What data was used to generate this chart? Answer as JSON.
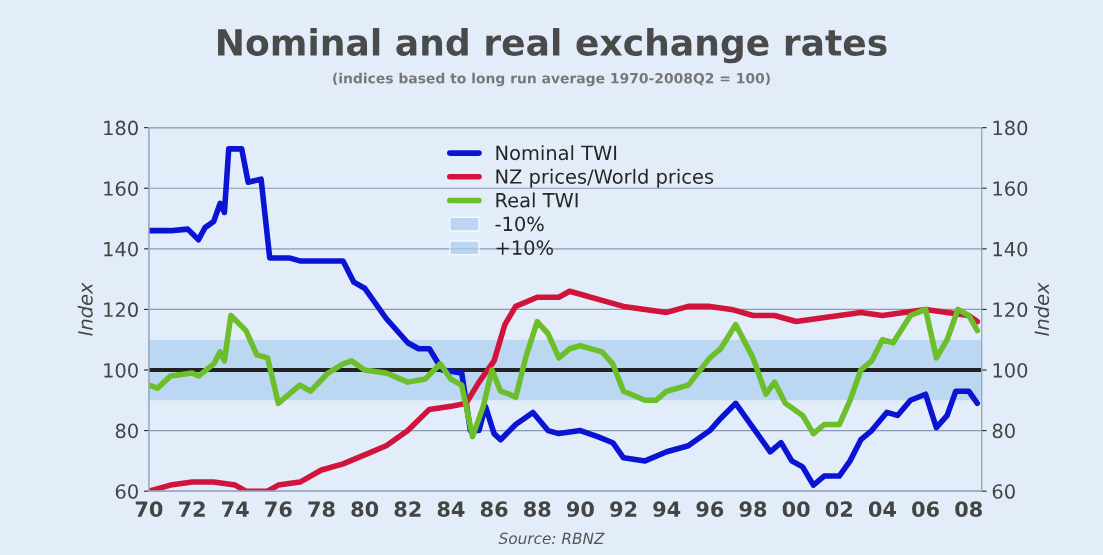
{
  "chart_data": {
    "type": "line",
    "title": "Nominal and real exchange rates",
    "subtitle": "(indices based to long run average 1970-2008Q2 = 100)",
    "ylabel": "Index",
    "y2label": "Index",
    "annotations": [
      "Source: RBNZ"
    ],
    "xlim": [
      1970,
      2008.6
    ],
    "xticks": [
      {
        "value": 1970,
        "label": "70"
      },
      {
        "value": 1972,
        "label": "72"
      },
      {
        "value": 1974,
        "label": "74"
      },
      {
        "value": 1976,
        "label": "76"
      },
      {
        "value": 1978,
        "label": "78"
      },
      {
        "value": 1980,
        "label": "80"
      },
      {
        "value": 1982,
        "label": "82"
      },
      {
        "value": 1984,
        "label": "84"
      },
      {
        "value": 1986,
        "label": "86"
      },
      {
        "value": 1988,
        "label": "88"
      },
      {
        "value": 1990,
        "label": "90"
      },
      {
        "value": 1992,
        "label": "92"
      },
      {
        "value": 1994,
        "label": "94"
      },
      {
        "value": 1996,
        "label": "96"
      },
      {
        "value": 1998,
        "label": "98"
      },
      {
        "value": 2000,
        "label": "00"
      },
      {
        "value": 2002,
        "label": "02"
      },
      {
        "value": 2004,
        "label": "04"
      },
      {
        "value": 2006,
        "label": "06"
      },
      {
        "value": 2008,
        "label": "08"
      }
    ],
    "ylim": [
      60,
      180
    ],
    "yticks": [
      60,
      80,
      100,
      120,
      140,
      160,
      180
    ],
    "y2lim": [
      60,
      180
    ],
    "y2ticks": [
      60,
      80,
      100,
      120,
      140,
      160,
      180
    ],
    "grid": "y",
    "legend": "top",
    "line_style": "solid",
    "ref_lines": [
      {
        "axis": "y",
        "value": 100,
        "color": "#222222"
      }
    ],
    "bands": [
      {
        "axis": "y",
        "from": 90,
        "to": 100,
        "label": "-10%",
        "color": "#a9cdf0"
      },
      {
        "axis": "y",
        "from": 100,
        "to": 110,
        "label": "+10%",
        "color": "#a9cdf0"
      }
    ],
    "series": [
      {
        "name": "Nominal TWI",
        "color": "#0a14d2",
        "x": [
          1970,
          1971,
          1971.8,
          1972.3,
          1972.6,
          1973.0,
          1973.3,
          1973.5,
          1973.7,
          1974.3,
          1974.6,
          1975.2,
          1975.6,
          1976.5,
          1977,
          1979,
          1979.5,
          1980,
          1981,
          1982,
          1982.5,
          1983,
          1983.6,
          1984.5,
          1984.9,
          1985.3,
          1985.6,
          1986,
          1986.3,
          1987,
          1987.8,
          1988.5,
          1989,
          1990,
          1990.8,
          1991.5,
          1992,
          1993,
          1994,
          1995,
          1996,
          1996.5,
          1997.2,
          1998,
          1998.8,
          1999.3,
          1999.8,
          2000.3,
          2000.8,
          2001.3,
          2002,
          2002.5,
          2003,
          2003.5,
          2004.2,
          2004.7,
          2005.3,
          2006,
          2006.5,
          2007,
          2007.4,
          2008,
          2008.4
        ],
        "values": [
          146,
          146,
          146.5,
          143,
          147,
          149,
          155,
          152,
          173,
          173,
          162,
          163,
          137,
          137,
          136,
          136,
          129,
          127,
          117,
          109,
          107,
          107,
          100,
          99,
          80,
          80,
          88,
          79,
          77,
          82,
          86,
          80,
          79,
          80,
          78,
          76,
          71,
          70,
          73,
          75,
          80,
          84,
          89,
          81,
          73,
          76,
          70,
          68,
          62,
          65,
          65,
          70,
          77,
          80,
          86,
          85,
          90,
          92,
          81,
          85,
          93,
          93,
          89
        ]
      },
      {
        "name": "NZ prices/World prices",
        "color": "#d0143c",
        "x": [
          1970,
          1971,
          1972,
          1973,
          1974,
          1974.5,
          1975.5,
          1976,
          1977,
          1978,
          1979,
          1980,
          1981,
          1982,
          1983,
          1984,
          1984.7,
          1985.3,
          1986,
          1986.5,
          1987,
          1988,
          1989,
          1989.5,
          1990,
          1991,
          1992,
          1993,
          1994,
          1995,
          1996,
          1997,
          1998,
          1999,
          2000,
          2001,
          2002,
          2003,
          2004,
          2005,
          2006,
          2007,
          2008,
          2008.4
        ],
        "values": [
          60,
          62,
          63,
          63,
          62,
          60,
          60,
          62,
          63,
          67,
          69,
          72,
          75,
          80,
          87,
          88,
          89,
          96,
          103,
          115,
          121,
          124,
          124,
          126,
          125,
          123,
          121,
          120,
          119,
          121,
          121,
          120,
          118,
          118,
          116,
          117,
          118,
          119,
          118,
          119,
          120,
          119,
          118,
          116
        ]
      },
      {
        "name": "Real TWI",
        "color": "#6cbf2a",
        "x": [
          1970,
          1970.4,
          1971,
          1972,
          1972.3,
          1973,
          1973.3,
          1973.5,
          1973.8,
          1974.5,
          1975,
          1975.5,
          1976,
          1976.5,
          1977,
          1977.5,
          1978.3,
          1979,
          1979.4,
          1980,
          1981,
          1982,
          1982.8,
          1983.5,
          1984,
          1984.5,
          1985,
          1985.5,
          1985.9,
          1986.3,
          1986.7,
          1987,
          1987.5,
          1988,
          1988.5,
          1989,
          1989.5,
          1990,
          1991,
          1991.5,
          1992,
          1993,
          1993.5,
          1994,
          1995,
          1996,
          1996.5,
          1997.2,
          1998,
          1998.6,
          1999,
          1999.5,
          2000.3,
          2000.8,
          2001.3,
          2002,
          2002.5,
          2003,
          2003.5,
          2004,
          2004.5,
          2005.3,
          2006,
          2006.5,
          2007,
          2007.5,
          2008,
          2008.4
        ],
        "values": [
          95,
          94,
          98,
          99,
          98,
          102,
          106,
          103,
          118,
          113,
          105,
          104,
          89,
          92,
          95,
          93,
          99,
          102,
          103,
          100,
          99,
          96,
          97,
          102,
          97,
          95,
          78,
          88,
          100,
          93,
          92,
          91,
          105,
          116,
          112,
          104,
          107,
          108,
          106,
          102,
          93,
          90,
          90,
          93,
          95,
          104,
          107,
          115,
          104,
          92,
          96,
          89,
          85,
          79,
          82,
          82,
          90,
          100,
          103,
          110,
          109,
          118,
          120,
          104,
          110,
          120,
          118,
          113
        ]
      }
    ]
  }
}
